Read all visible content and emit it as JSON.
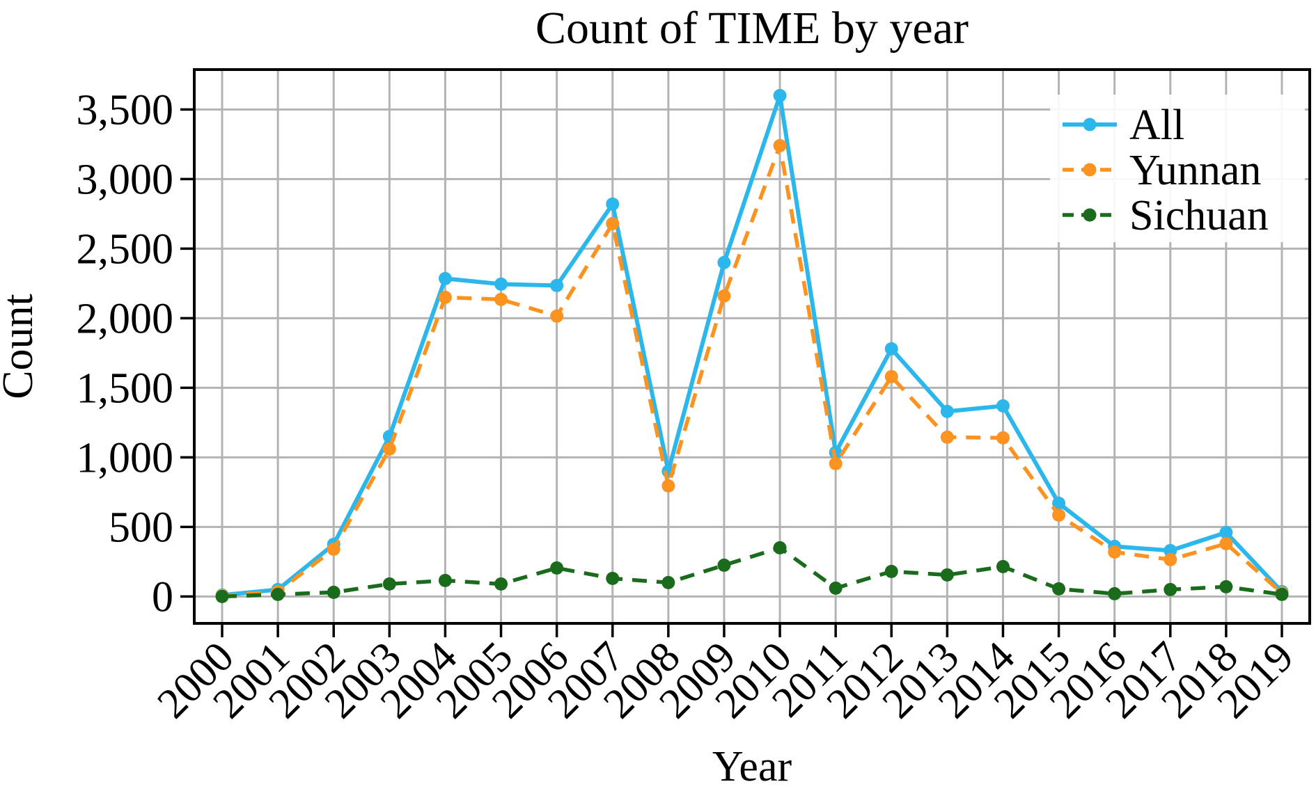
{
  "chart_data": {
    "type": "line",
    "title": "Count of TIME by year",
    "xlabel": "Year",
    "ylabel": "Count",
    "categories": [
      "2000",
      "2001",
      "2002",
      "2003",
      "2004",
      "2005",
      "2006",
      "2007",
      "2008",
      "2009",
      "2010",
      "2011",
      "2012",
      "2013",
      "2014",
      "2015",
      "2016",
      "2017",
      "2018",
      "2019"
    ],
    "y_tick_labels": [
      "0",
      "500",
      "1,000",
      "1,500",
      "2,000",
      "2,500",
      "3,000",
      "3,500"
    ],
    "y_tick_values": [
      0,
      500,
      1000,
      1500,
      2000,
      2500,
      3000,
      3500
    ],
    "ylim": [
      -193,
      3787
    ],
    "grid": true,
    "legend_position": "top-right",
    "colors": {
      "grid": "#b3b3b3",
      "spine": "#000000",
      "tick": "#000000",
      "legend_background": "#ffffff"
    },
    "series": [
      {
        "name": "All",
        "color": "#2bb6ec",
        "style": "solid",
        "values": [
          10,
          50,
          375,
          1150,
          2285,
          2245,
          2235,
          2820,
          900,
          2400,
          3600,
          1035,
          1780,
          1330,
          1370,
          670,
          360,
          330,
          460,
          35
        ]
      },
      {
        "name": "Yunnan",
        "color": "#fc921f",
        "style": "dashed",
        "values": [
          5,
          35,
          340,
          1060,
          2150,
          2135,
          2015,
          2680,
          795,
          2160,
          3240,
          955,
          1580,
          1145,
          1140,
          585,
          320,
          265,
          380,
          25
        ]
      },
      {
        "name": "Sichuan",
        "color": "#1a6b1b",
        "style": "dashed",
        "values": [
          0,
          15,
          30,
          90,
          115,
          90,
          205,
          130,
          100,
          225,
          350,
          60,
          180,
          155,
          215,
          55,
          20,
          50,
          70,
          15
        ]
      }
    ]
  }
}
